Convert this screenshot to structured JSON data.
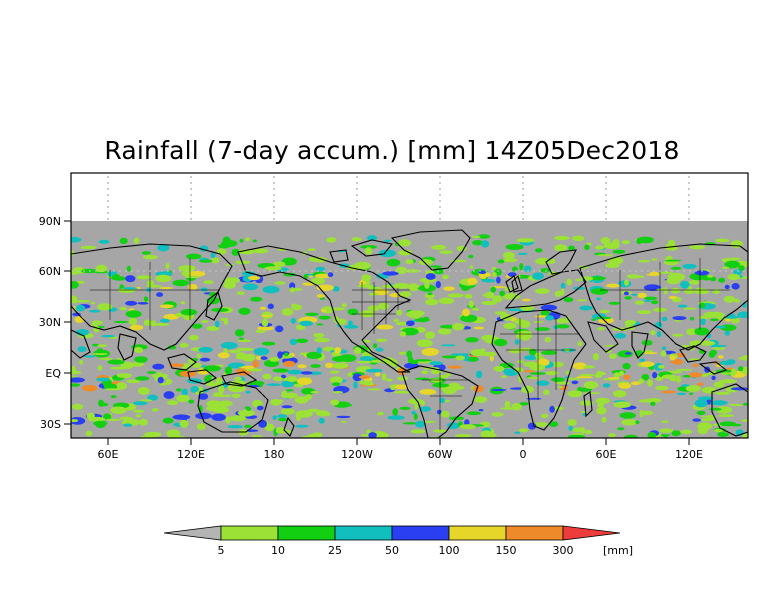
{
  "title": "Rainfall (7-day accum.) [mm] 14Z05Dec2018",
  "map": {
    "lat_labels": [
      "90N",
      "60N",
      "30N",
      "EQ",
      "30S"
    ],
    "lon_labels": [
      "60E",
      "120E",
      "180",
      "120W",
      "60W",
      "0",
      "60E",
      "120E"
    ],
    "missing_color": "#a6a6a6"
  },
  "colorbar": {
    "unit": "[mm]",
    "tick_labels": [
      "5",
      "10",
      "25",
      "50",
      "100",
      "150",
      "300"
    ],
    "colors": [
      "#b4b4b4",
      "#9be136",
      "#12cf12",
      "#12bfbf",
      "#2a3ff2",
      "#e6d62a",
      "#ee8a2a",
      "#ee3b3b"
    ]
  }
}
